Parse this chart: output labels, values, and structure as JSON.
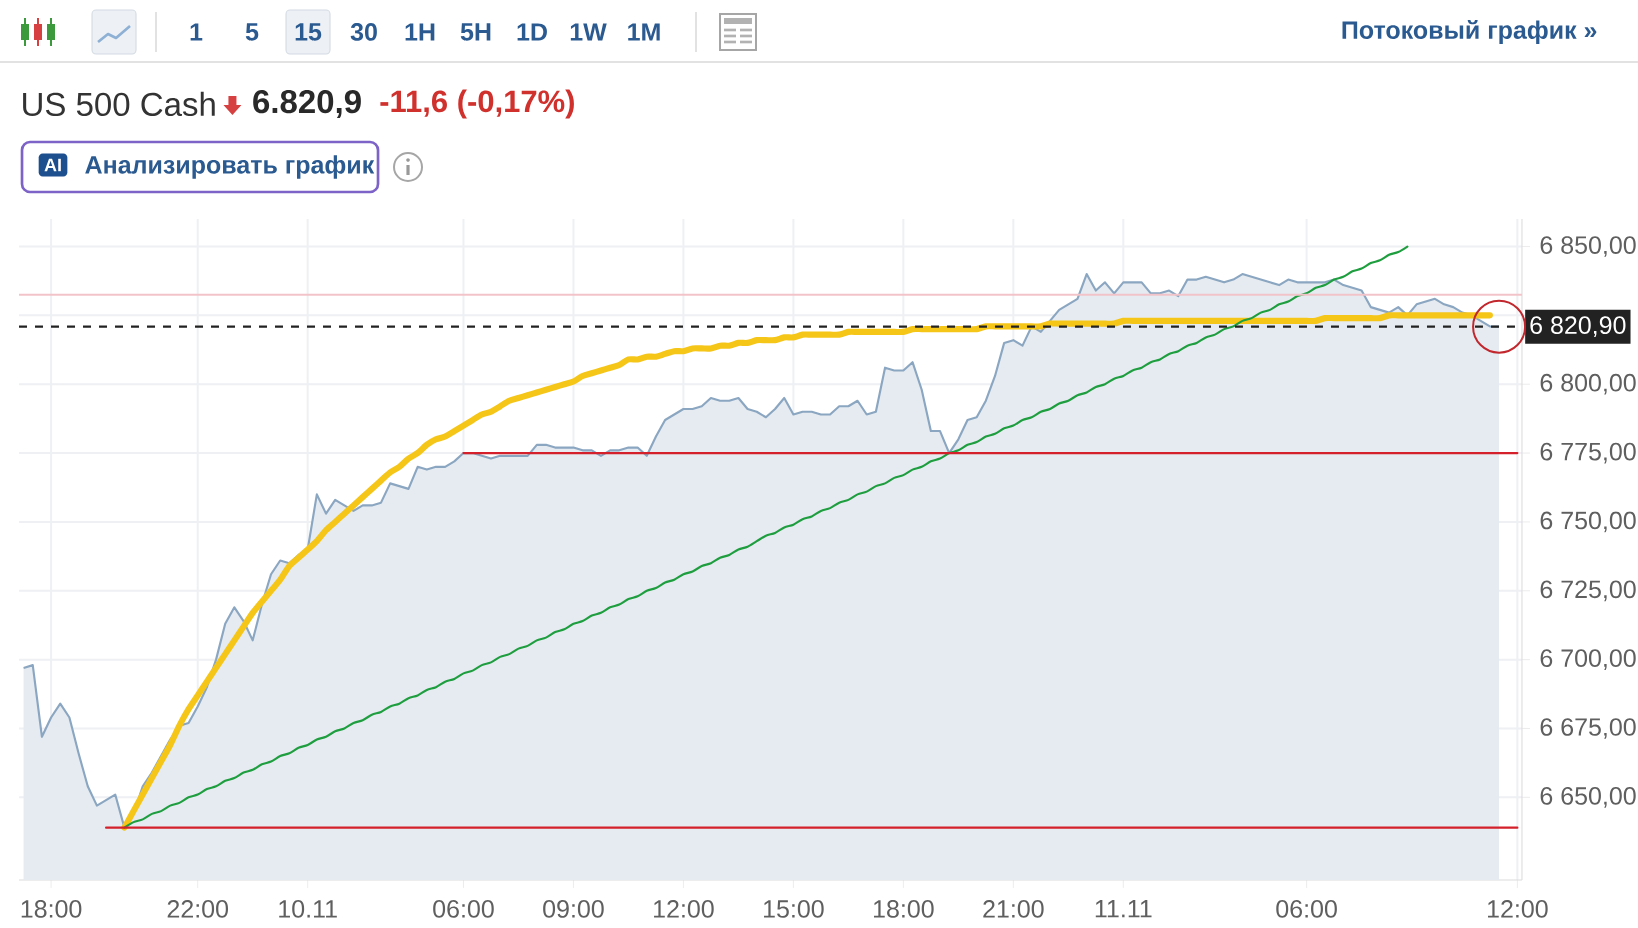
{
  "chart_data": {
    "type": "area",
    "title": "US 500 Cash",
    "subtitle": "6.820,9",
    "annotations": [
      "1",
      "5",
      "15",
      "30",
      "1H",
      "5H",
      "1D",
      "1W",
      "1M",
      "Потоковый график »",
      "-11,6 (-0,17%)",
      "AI",
      "Анализировать график"
    ],
    "categories": [
      null,
      null,
      null,
      "18:00",
      null,
      null,
      null,
      null,
      null,
      null,
      null,
      null,
      null,
      null,
      null,
      null,
      null,
      null,
      null,
      "22:00",
      null,
      null,
      null,
      null,
      null,
      null,
      null,
      null,
      null,
      null,
      null,
      "10.11",
      null,
      null,
      null,
      null,
      null,
      null,
      null,
      null,
      null,
      null,
      null,
      null,
      null,
      null,
      null,
      null,
      "06:00",
      null,
      null,
      null,
      null,
      null,
      null,
      null,
      null,
      null,
      null,
      null,
      "09:00",
      null,
      null,
      null,
      null,
      null,
      null,
      null,
      null,
      null,
      null,
      null,
      "12:00",
      null,
      null,
      null,
      null,
      null,
      null,
      null,
      null,
      null,
      null,
      null,
      "15:00",
      null,
      null,
      null,
      null,
      null,
      null,
      null,
      null,
      null,
      null,
      null,
      "18:00",
      null,
      null,
      null,
      null,
      null,
      null,
      null,
      null,
      null,
      null,
      null,
      "21:00",
      null,
      null,
      null,
      null,
      null,
      null,
      null,
      null,
      null,
      null,
      null,
      "11.11",
      null,
      null,
      null,
      null,
      null,
      null,
      null,
      null,
      null,
      null,
      null,
      null,
      null,
      null,
      null,
      null,
      null,
      null,
      null,
      "06:00",
      null,
      null,
      null,
      null,
      null,
      null,
      null,
      null,
      null,
      null,
      null,
      null,
      null,
      null,
      null,
      null,
      null,
      null,
      null,
      null,
      null,
      null,
      "12:00"
    ],
    "ylim": [
      6620,
      6860
    ],
    "yticks": [
      {
        "value": 6650,
        "label": "6 650,00"
      },
      {
        "value": 6675,
        "label": "6 675,00"
      },
      {
        "value": 6700,
        "label": "6 700,00"
      },
      {
        "value": 6725,
        "label": "6 725,00"
      },
      {
        "value": 6750,
        "label": "6 750,00"
      },
      {
        "value": 6775,
        "label": "6 775,00"
      },
      {
        "value": 6800,
        "label": "6 800,00"
      },
      {
        "value": 6825,
        "label": null
      },
      {
        "value": 6850,
        "label": "6 850,00"
      }
    ],
    "grid": true,
    "series": [
      {
        "color": "#8ba6c1",
        "values": [
          6697,
          6698,
          6672,
          6679,
          6684,
          6679,
          6666,
          6654,
          6647,
          6649,
          6651,
          6639,
          6644,
          6654,
          6659,
          6665,
          6671,
          6676,
          6677,
          6683,
          6690,
          6700,
          6713,
          6719,
          6714,
          6707,
          6720,
          6731,
          6736,
          6735,
          6738,
          6740,
          6760,
          6753,
          6758,
          6756,
          6754,
          6756,
          6756,
          6757,
          6764,
          6763,
          6762,
          6770,
          6769,
          6770,
          6770,
          6772,
          6775,
          6775,
          6774,
          6773,
          6774,
          6774,
          6774,
          6774,
          6778,
          6778,
          6777,
          6777,
          6777,
          6776,
          6776,
          6774,
          6776,
          6776,
          6777,
          6777,
          6774,
          6781,
          6787,
          6789,
          6791,
          6791,
          6792,
          6795,
          6794,
          6794,
          6795,
          6791,
          6790,
          6788,
          6791,
          6795,
          6789,
          6790,
          6790,
          6789,
          6789,
          6792,
          6792,
          6794,
          6789,
          6790,
          6806,
          6805,
          6805,
          6808,
          6798,
          6783,
          6783,
          6775,
          6780,
          6787,
          6788,
          6794,
          6803,
          6815,
          6816,
          6814,
          6821,
          6819,
          6823,
          6827,
          6829,
          6831,
          6840,
          6834,
          6837,
          6833,
          6837,
          6837,
          6837,
          6833,
          6833,
          6834,
          6832,
          6838,
          6838,
          6839,
          6838,
          6837,
          6838,
          6840,
          6839,
          6838,
          6837,
          6836,
          6838,
          6837,
          6837,
          6837,
          6837,
          6838,
          6836,
          6835,
          6834,
          6828,
          6827,
          6826,
          6828,
          6825,
          6829,
          6830,
          6831,
          6829,
          6828,
          6826,
          6825,
          6823,
          6821,
          6820.9,
          null,
          null
        ]
      },
      {
        "type": "line",
        "color": "#f5c518",
        "values": [
          null,
          null,
          null,
          null,
          null,
          null,
          null,
          null,
          null,
          null,
          null,
          6639,
          6645,
          6651,
          6657,
          6663,
          6669,
          6676,
          6682,
          6687,
          6692,
          6697,
          6702,
          6707,
          6712,
          6717,
          6721,
          6725,
          6729,
          6734,
          6737,
          6740,
          6743,
          6747,
          6750,
          6753,
          6756,
          6759,
          6762,
          6765,
          6768,
          6770,
          6773,
          6775,
          6778,
          6780,
          6781,
          6783,
          6785,
          6787,
          6789,
          6790,
          6792,
          6794,
          6795,
          6796,
          6797,
          6798,
          6799,
          6800,
          6801,
          6803,
          6804,
          6805,
          6806,
          6807,
          6809,
          6809,
          6810,
          6810,
          6811,
          6812,
          6812,
          6813,
          6813,
          6813,
          6814,
          6814,
          6815,
          6815,
          6816,
          6816,
          6816,
          6817,
          6817,
          6818,
          6818,
          6818,
          6818,
          6818,
          6819,
          6819,
          6819,
          6819,
          6819,
          6819,
          6819,
          6820,
          6820,
          6820,
          6820,
          6820,
          6820,
          6820,
          6820,
          6821,
          6821,
          6821,
          6821,
          6821,
          6821,
          6821,
          6822,
          6822,
          6822,
          6822,
          6822,
          6822,
          6822,
          6822,
          6823,
          6823,
          6823,
          6823,
          6823,
          6823,
          6823,
          6823,
          6823,
          6823,
          6823,
          6823,
          6823,
          6823,
          6823,
          6823,
          6823,
          6823,
          6823,
          6823,
          6823,
          6823,
          6824,
          6824,
          6824,
          6824,
          6824,
          6824,
          6824,
          6825,
          6825,
          6825,
          6825,
          6825,
          6825,
          6825,
          6825,
          6825,
          6825,
          6825,
          6825,
          null,
          null,
          null
        ]
      },
      {
        "type": "line",
        "color": "#1f9e3f",
        "values": [
          null,
          null,
          null,
          null,
          null,
          null,
          null,
          null,
          null,
          null,
          null,
          6639,
          6641,
          6642,
          6644,
          6645,
          6647,
          6648,
          6650,
          6651,
          6653,
          6654,
          6656,
          6657,
          6659,
          6660,
          6662,
          6663,
          6665,
          6666,
          6668,
          6669,
          6671,
          6672,
          6674,
          6675,
          6677,
          6678,
          6680,
          6681,
          6683,
          6684,
          6686,
          6687,
          6689,
          6690,
          6692,
          6693,
          6695,
          6696,
          6698,
          6699,
          6701,
          6702,
          6704,
          6705,
          6707,
          6708,
          6710,
          6711,
          6713,
          6714,
          6716,
          6717,
          6719,
          6720,
          6722,
          6723,
          6725,
          6726,
          6728,
          6729,
          6731,
          6732,
          6734,
          6735,
          6737,
          6738,
          6740,
          6741,
          6743,
          6745,
          6746,
          6748,
          6749,
          6751,
          6752,
          6754,
          6755,
          6757,
          6758,
          6760,
          6761,
          6763,
          6764,
          6766,
          6767,
          6769,
          6770,
          6772,
          6773,
          6775,
          6776,
          6778,
          6779,
          6781,
          6782,
          6784,
          6785,
          6787,
          6788,
          6790,
          6791,
          6793,
          6794,
          6796,
          6797,
          6799,
          6800,
          6802,
          6803,
          6805,
          6806,
          6808,
          6809,
          6811,
          6812,
          6814,
          6815,
          6817,
          6818,
          6820,
          6821,
          6823,
          6824,
          6826,
          6827,
          6829,
          6830,
          6832,
          6833,
          6835,
          6836,
          6838,
          6839,
          6841,
          6842,
          6844,
          6845,
          6847,
          6848,
          6850,
          null,
          null,
          null,
          null,
          null,
          null,
          null,
          null,
          null,
          null,
          null,
          null
        ]
      },
      {
        "type": "line",
        "color": "#d3202a",
        "values": [
          null,
          null,
          null,
          null,
          null,
          null,
          null,
          null,
          null,
          null,
          null,
          null,
          null,
          null,
          null,
          null,
          null,
          null,
          null,
          null,
          null,
          null,
          null,
          null,
          null,
          null,
          null,
          null,
          null,
          null,
          null,
          null,
          null,
          null,
          null,
          null,
          null,
          null,
          null,
          null,
          null,
          null,
          null,
          null,
          null,
          null,
          null,
          null,
          6775,
          6775,
          6775,
          6775,
          6775,
          6775,
          6775,
          6775,
          6775,
          6775,
          6775,
          6775,
          6775,
          6775,
          6775,
          6775,
          6775,
          6775,
          6775,
          6775,
          6775,
          6775,
          6775,
          6775,
          6775,
          6775,
          6775,
          6775,
          6775,
          6775,
          6775,
          6775,
          6775,
          6775,
          6775,
          6775,
          6775,
          6775,
          6775,
          6775,
          6775,
          6775,
          6775,
          6775,
          6775,
          6775,
          6775,
          6775,
          6775,
          6775,
          6775,
          6775,
          6775,
          6775,
          6775,
          6775,
          6775,
          6775,
          6775,
          6775,
          6775,
          6775,
          6775,
          6775,
          6775,
          6775,
          6775,
          6775,
          6775,
          6775,
          6775,
          6775,
          6775,
          6775,
          6775,
          6775,
          6775,
          6775,
          6775,
          6775,
          6775,
          6775,
          6775,
          6775,
          6775,
          6775,
          6775,
          6775,
          6775,
          6775,
          6775,
          6775,
          6775,
          6775,
          6775,
          6775,
          6775,
          6775,
          6775,
          6775,
          6775,
          6775,
          6775,
          6775,
          6775,
          6775,
          6775,
          6775,
          6775,
          6775,
          6775,
          6775,
          6775,
          6775,
          6775,
          6775
        ]
      },
      {
        "type": "line",
        "color": "#d3202a",
        "values": [
          null,
          null,
          null,
          null,
          null,
          null,
          null,
          null,
          null,
          6639,
          6639,
          6639,
          6639,
          6639,
          6639,
          6639,
          6639,
          6639,
          6639,
          6639,
          6639,
          6639,
          6639,
          6639,
          6639,
          6639,
          6639,
          6639,
          6639,
          6639,
          6639,
          6639,
          6639,
          6639,
          6639,
          6639,
          6639,
          6639,
          6639,
          6639,
          6639,
          6639,
          6639,
          6639,
          6639,
          6639,
          6639,
          6639,
          6639,
          6639,
          6639,
          6639,
          6639,
          6639,
          6639,
          6639,
          6639,
          6639,
          6639,
          6639,
          6639,
          6639,
          6639,
          6639,
          6639,
          6639,
          6639,
          6639,
          6639,
          6639,
          6639,
          6639,
          6639,
          6639,
          6639,
          6639,
          6639,
          6639,
          6639,
          6639,
          6639,
          6639,
          6639,
          6639,
          6639,
          6639,
          6639,
          6639,
          6639,
          6639,
          6639,
          6639,
          6639,
          6639,
          6639,
          6639,
          6639,
          6639,
          6639,
          6639,
          6639,
          6639,
          6639,
          6639,
          6639,
          6639,
          6639,
          6639,
          6639,
          6639,
          6639,
          6639,
          6639,
          6639,
          6639,
          6639,
          6639,
          6639,
          6639,
          6639,
          6639,
          6639,
          6639,
          6639,
          6639,
          6639,
          6639,
          6639,
          6639,
          6639,
          6639,
          6639,
          6639,
          6639,
          6639,
          6639,
          6639,
          6639,
          6639,
          6639,
          6639,
          6639,
          6639,
          6639,
          6639,
          6639,
          6639,
          6639,
          6639,
          6639,
          6639,
          6639,
          6639,
          6639,
          6639,
          6639,
          6639,
          6639,
          6639,
          6639,
          6639,
          6639,
          6639,
          6639
        ]
      }
    ],
    "ref_lines": [
      {
        "axis": "y",
        "value": 6832.5,
        "color": "#f2c4c9"
      },
      {
        "axis": "y",
        "value": 6820.9,
        "label": "6 820,90",
        "color": "#222222",
        "line_style": "dashed"
      }
    ]
  }
}
